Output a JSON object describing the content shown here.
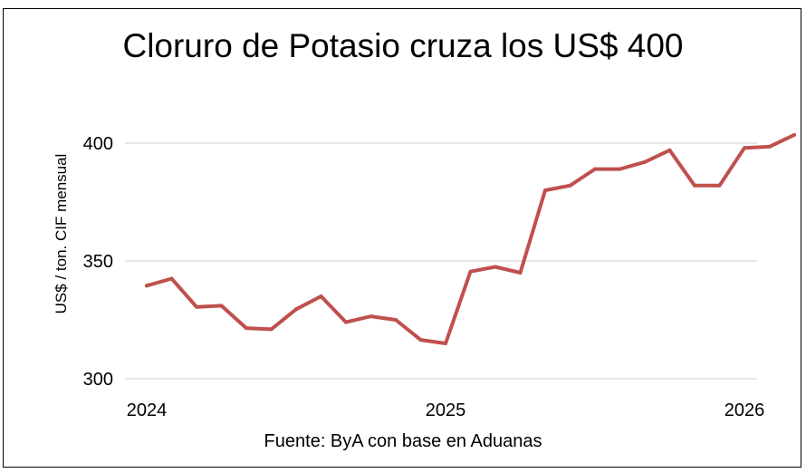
{
  "chart_data": {
    "type": "line",
    "title": "Cloruro de Potasio cruza los US$ 400",
    "ylabel": "US$ / ton. CIF mensual",
    "xlabel": "",
    "source": "Fuente: ByA con base en Aduanas",
    "ylim": [
      300,
      405
    ],
    "yticks": [
      300,
      350,
      400
    ],
    "ytick_labels": [
      "300",
      "350",
      "400"
    ],
    "xticks": [
      0,
      12,
      24
    ],
    "xtick_labels": [
      "2024",
      "2025",
      "2026"
    ],
    "grid": true,
    "series_color": "#c0504d",
    "series": [
      {
        "x": [
          0,
          1,
          2,
          3,
          4,
          5,
          6,
          7,
          8,
          9,
          10,
          11,
          12,
          13,
          14,
          15,
          16,
          17,
          18,
          19,
          20,
          21,
          22,
          23,
          24,
          25,
          26
        ],
        "values": [
          339.5,
          342.5,
          330.5,
          331,
          321.5,
          321,
          329.5,
          335,
          324,
          326.5,
          325,
          316.5,
          315,
          345.5,
          347.5,
          345,
          380,
          382,
          389,
          389,
          392,
          397,
          382,
          382,
          398,
          398.5,
          403.5
        ]
      }
    ]
  }
}
